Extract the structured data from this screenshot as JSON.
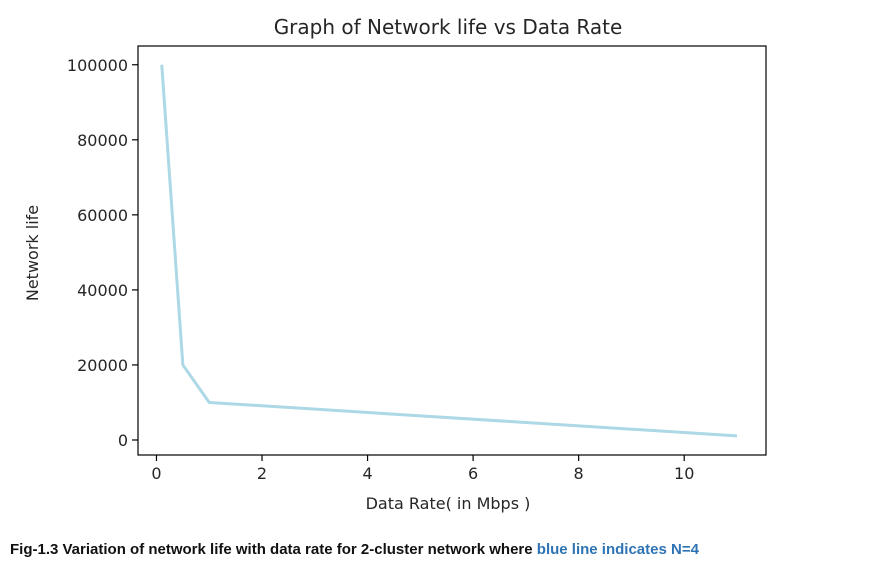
{
  "chart_data": {
    "type": "line",
    "title": "Graph of Network life vs Data Rate",
    "xlabel": "Data Rate( in Mbps )",
    "ylabel": "Network life",
    "xlim": [
      -0.35,
      11.55
    ],
    "ylim": [
      -4000,
      105000
    ],
    "xticks": [
      0,
      2,
      4,
      6,
      8,
      10
    ],
    "xtick_labels": [
      "0",
      "2",
      "4",
      "6",
      "8",
      "10"
    ],
    "yticks": [
      0,
      20000,
      40000,
      60000,
      80000,
      100000
    ],
    "ytick_labels": [
      "0",
      "20000",
      "40000",
      "60000",
      "80000",
      "100000"
    ],
    "grid": false,
    "series": [
      {
        "color": "#add8e6",
        "x": [
          0.1,
          0.5,
          1,
          11
        ],
        "y": [
          100000,
          20000,
          10000,
          1100
        ]
      }
    ]
  },
  "caption": {
    "main": "Fig-1.3 Variation of network life with data rate for 2-cluster network where ",
    "highlight": "blue line indicates N=4",
    "highlight_color": "#2e74b5"
  }
}
